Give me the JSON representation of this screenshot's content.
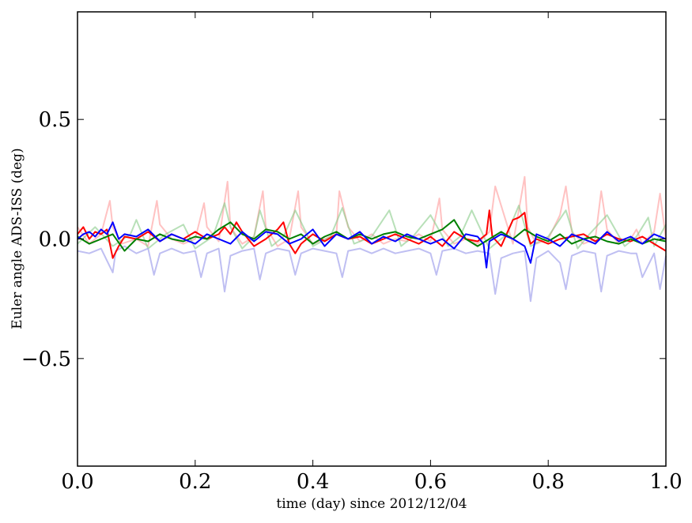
{
  "chart_data": {
    "type": "line",
    "title": "",
    "xlabel": "time (day) since 2012/12/04",
    "ylabel": "Euler angle ADS-ISS (deg)",
    "xlim": [
      0.0,
      1.0
    ],
    "ylim": [
      -0.95,
      0.95
    ],
    "xticks": [
      0.0,
      0.2,
      0.4,
      0.6,
      0.8,
      1.0
    ],
    "xtick_labels": [
      "0.0",
      "0.2",
      "0.4",
      "0.6",
      "0.8",
      "1.0"
    ],
    "yticks": [
      0.5,
      0.0,
      -0.5
    ],
    "ytick_labels": [
      "0.5",
      "0.0",
      "−0.5"
    ],
    "grid": false,
    "legend": "none",
    "series": [
      {
        "color": "#ff9999",
        "opacity": 0.6,
        "x": [
          0.0,
          0.02,
          0.04,
          0.055,
          0.06,
          0.075,
          0.1,
          0.12,
          0.135,
          0.14,
          0.16,
          0.18,
          0.2,
          0.215,
          0.22,
          0.24,
          0.255,
          0.26,
          0.28,
          0.3,
          0.315,
          0.32,
          0.34,
          0.36,
          0.375,
          0.38,
          0.4,
          0.42,
          0.44,
          0.445,
          0.46,
          0.48,
          0.5,
          0.52,
          0.54,
          0.56,
          0.58,
          0.6,
          0.615,
          0.62,
          0.64,
          0.66,
          0.68,
          0.7,
          0.71,
          0.74,
          0.76,
          0.765,
          0.78,
          0.8,
          0.82,
          0.83,
          0.84,
          0.86,
          0.88,
          0.89,
          0.9,
          0.92,
          0.94,
          0.95,
          0.96,
          0.98,
          0.99,
          1.0
        ],
        "y": [
          0.05,
          -0.02,
          0.02,
          0.16,
          0.05,
          -0.02,
          0.0,
          -0.03,
          0.16,
          0.06,
          0.0,
          -0.02,
          0.0,
          0.15,
          0.05,
          -0.01,
          0.24,
          0.05,
          -0.02,
          0.01,
          0.2,
          0.05,
          -0.03,
          0.0,
          0.2,
          0.05,
          -0.02,
          0.0,
          0.02,
          0.2,
          0.05,
          -0.01,
          0.02,
          -0.02,
          0.0,
          -0.01,
          0.02,
          -0.01,
          0.17,
          0.04,
          -0.02,
          0.0,
          -0.02,
          0.03,
          0.22,
          -0.02,
          0.26,
          0.05,
          -0.02,
          0.0,
          0.1,
          0.22,
          0.03,
          -0.02,
          0.0,
          0.2,
          0.04,
          -0.02,
          0.0,
          0.04,
          -0.02,
          0.03,
          0.19,
          0.0
        ]
      },
      {
        "color": "#88cc88",
        "opacity": 0.6,
        "x": [
          0.0,
          0.03,
          0.06,
          0.09,
          0.1,
          0.12,
          0.15,
          0.18,
          0.2,
          0.23,
          0.25,
          0.26,
          0.28,
          0.3,
          0.31,
          0.33,
          0.35,
          0.37,
          0.4,
          0.43,
          0.45,
          0.47,
          0.5,
          0.53,
          0.55,
          0.57,
          0.6,
          0.63,
          0.65,
          0.67,
          0.7,
          0.73,
          0.75,
          0.77,
          0.8,
          0.83,
          0.85,
          0.87,
          0.9,
          0.93,
          0.95,
          0.97,
          0.98,
          1.0
        ],
        "y": [
          -0.02,
          0.05,
          -0.03,
          0.02,
          0.08,
          -0.04,
          0.02,
          0.06,
          -0.04,
          0.01,
          0.15,
          0.05,
          -0.04,
          0.01,
          0.12,
          -0.03,
          0.01,
          0.12,
          -0.03,
          0.01,
          0.13,
          -0.02,
          0.01,
          0.12,
          -0.03,
          0.01,
          0.1,
          -0.03,
          0.01,
          0.12,
          -0.04,
          0.02,
          0.14,
          -0.03,
          0.01,
          0.12,
          -0.04,
          0.02,
          0.1,
          -0.03,
          0.01,
          0.09,
          -0.03,
          0.06
        ]
      },
      {
        "color": "#aaaaee",
        "opacity": 0.75,
        "x": [
          0.0,
          0.02,
          0.04,
          0.06,
          0.065,
          0.08,
          0.1,
          0.12,
          0.13,
          0.14,
          0.16,
          0.18,
          0.2,
          0.21,
          0.22,
          0.24,
          0.25,
          0.26,
          0.28,
          0.3,
          0.31,
          0.32,
          0.34,
          0.36,
          0.37,
          0.38,
          0.4,
          0.42,
          0.44,
          0.45,
          0.46,
          0.48,
          0.5,
          0.52,
          0.54,
          0.56,
          0.58,
          0.6,
          0.61,
          0.62,
          0.64,
          0.66,
          0.68,
          0.7,
          0.71,
          0.72,
          0.74,
          0.76,
          0.77,
          0.78,
          0.8,
          0.82,
          0.83,
          0.84,
          0.86,
          0.88,
          0.89,
          0.9,
          0.92,
          0.94,
          0.95,
          0.96,
          0.98,
          0.99,
          1.0
        ],
        "y": [
          -0.05,
          -0.06,
          -0.04,
          -0.14,
          -0.05,
          -0.03,
          -0.06,
          -0.04,
          -0.15,
          -0.06,
          -0.04,
          -0.06,
          -0.05,
          -0.16,
          -0.06,
          -0.04,
          -0.22,
          -0.07,
          -0.05,
          -0.04,
          -0.17,
          -0.06,
          -0.04,
          -0.05,
          -0.15,
          -0.06,
          -0.04,
          -0.05,
          -0.06,
          -0.16,
          -0.05,
          -0.04,
          -0.06,
          -0.04,
          -0.06,
          -0.05,
          -0.04,
          -0.06,
          -0.15,
          -0.05,
          -0.04,
          -0.06,
          -0.05,
          -0.06,
          -0.23,
          -0.08,
          -0.06,
          -0.05,
          -0.26,
          -0.08,
          -0.05,
          -0.1,
          -0.21,
          -0.07,
          -0.05,
          -0.06,
          -0.22,
          -0.07,
          -0.05,
          -0.06,
          -0.06,
          -0.16,
          -0.06,
          -0.21,
          -0.07
        ]
      },
      {
        "color": "#ff0000",
        "opacity": 1,
        "x": [
          0.0,
          0.01,
          0.02,
          0.03,
          0.04,
          0.05,
          0.055,
          0.06,
          0.07,
          0.08,
          0.1,
          0.12,
          0.14,
          0.16,
          0.18,
          0.2,
          0.22,
          0.24,
          0.25,
          0.26,
          0.27,
          0.28,
          0.3,
          0.32,
          0.34,
          0.35,
          0.36,
          0.37,
          0.38,
          0.4,
          0.42,
          0.44,
          0.46,
          0.48,
          0.5,
          0.52,
          0.54,
          0.56,
          0.58,
          0.6,
          0.62,
          0.64,
          0.66,
          0.68,
          0.695,
          0.7,
          0.705,
          0.72,
          0.74,
          0.75,
          0.76,
          0.765,
          0.77,
          0.78,
          0.8,
          0.82,
          0.84,
          0.86,
          0.88,
          0.9,
          0.92,
          0.94,
          0.96,
          0.98,
          1.0
        ],
        "y": [
          0.02,
          0.05,
          0.0,
          0.03,
          0.02,
          0.04,
          -0.02,
          -0.08,
          -0.03,
          0.01,
          0.0,
          0.03,
          -0.01,
          0.02,
          0.0,
          0.03,
          0.0,
          0.02,
          0.05,
          0.02,
          0.07,
          0.03,
          -0.03,
          0.0,
          0.04,
          0.07,
          -0.02,
          -0.06,
          -0.02,
          0.02,
          -0.01,
          0.02,
          0.0,
          0.01,
          -0.02,
          0.0,
          0.02,
          0.0,
          -0.02,
          0.01,
          -0.03,
          0.03,
          0.0,
          -0.01,
          0.02,
          0.12,
          0.01,
          -0.03,
          0.08,
          0.09,
          0.11,
          0.02,
          -0.02,
          0.0,
          -0.02,
          0.0,
          0.01,
          0.02,
          -0.01,
          0.02,
          0.0,
          -0.01,
          0.01,
          -0.02,
          -0.05
        ]
      },
      {
        "color": "#008000",
        "opacity": 1,
        "x": [
          0.0,
          0.02,
          0.04,
          0.06,
          0.08,
          0.1,
          0.12,
          0.14,
          0.16,
          0.18,
          0.2,
          0.22,
          0.24,
          0.26,
          0.28,
          0.3,
          0.32,
          0.34,
          0.36,
          0.38,
          0.4,
          0.42,
          0.44,
          0.46,
          0.48,
          0.5,
          0.52,
          0.54,
          0.56,
          0.58,
          0.6,
          0.62,
          0.64,
          0.66,
          0.68,
          0.7,
          0.72,
          0.74,
          0.76,
          0.78,
          0.8,
          0.82,
          0.84,
          0.86,
          0.88,
          0.9,
          0.92,
          0.94,
          0.96,
          0.98,
          1.0
        ],
        "y": [
          0.01,
          -0.02,
          0.0,
          0.02,
          -0.05,
          0.0,
          -0.01,
          0.02,
          0.0,
          -0.01,
          0.01,
          0.0,
          0.04,
          0.07,
          0.02,
          0.0,
          0.04,
          0.03,
          0.0,
          0.02,
          -0.02,
          0.01,
          0.03,
          0.0,
          0.02,
          0.0,
          0.02,
          0.03,
          0.01,
          0.0,
          0.02,
          0.04,
          0.08,
          0.0,
          -0.03,
          0.0,
          0.03,
          0.0,
          0.04,
          0.01,
          -0.01,
          0.02,
          -0.02,
          0.0,
          0.01,
          -0.01,
          -0.02,
          0.0,
          -0.02,
          0.0,
          -0.01
        ]
      },
      {
        "color": "#0000ff",
        "opacity": 1,
        "x": [
          0.0,
          0.01,
          0.02,
          0.03,
          0.04,
          0.05,
          0.06,
          0.07,
          0.08,
          0.1,
          0.12,
          0.14,
          0.16,
          0.18,
          0.2,
          0.22,
          0.24,
          0.26,
          0.28,
          0.3,
          0.32,
          0.34,
          0.36,
          0.38,
          0.4,
          0.42,
          0.44,
          0.46,
          0.48,
          0.5,
          0.52,
          0.54,
          0.56,
          0.58,
          0.6,
          0.62,
          0.64,
          0.66,
          0.68,
          0.69,
          0.695,
          0.7,
          0.72,
          0.74,
          0.76,
          0.77,
          0.78,
          0.8,
          0.82,
          0.84,
          0.86,
          0.88,
          0.9,
          0.92,
          0.94,
          0.96,
          0.98,
          1.0
        ],
        "y": [
          0.0,
          0.02,
          0.03,
          0.01,
          0.04,
          0.02,
          0.07,
          0.0,
          0.02,
          0.01,
          0.04,
          -0.01,
          0.02,
          0.0,
          -0.02,
          0.02,
          0.0,
          -0.02,
          0.03,
          -0.01,
          0.03,
          0.02,
          -0.02,
          0.0,
          0.04,
          -0.03,
          0.02,
          0.0,
          0.03,
          -0.02,
          0.01,
          -0.01,
          0.02,
          0.0,
          -0.02,
          0.0,
          -0.04,
          0.02,
          0.01,
          -0.02,
          -0.12,
          -0.01,
          0.02,
          0.0,
          -0.03,
          -0.1,
          0.02,
          0.0,
          -0.03,
          0.02,
          0.0,
          -0.02,
          0.03,
          -0.01,
          0.01,
          -0.02,
          0.02,
          0.0
        ]
      }
    ]
  }
}
